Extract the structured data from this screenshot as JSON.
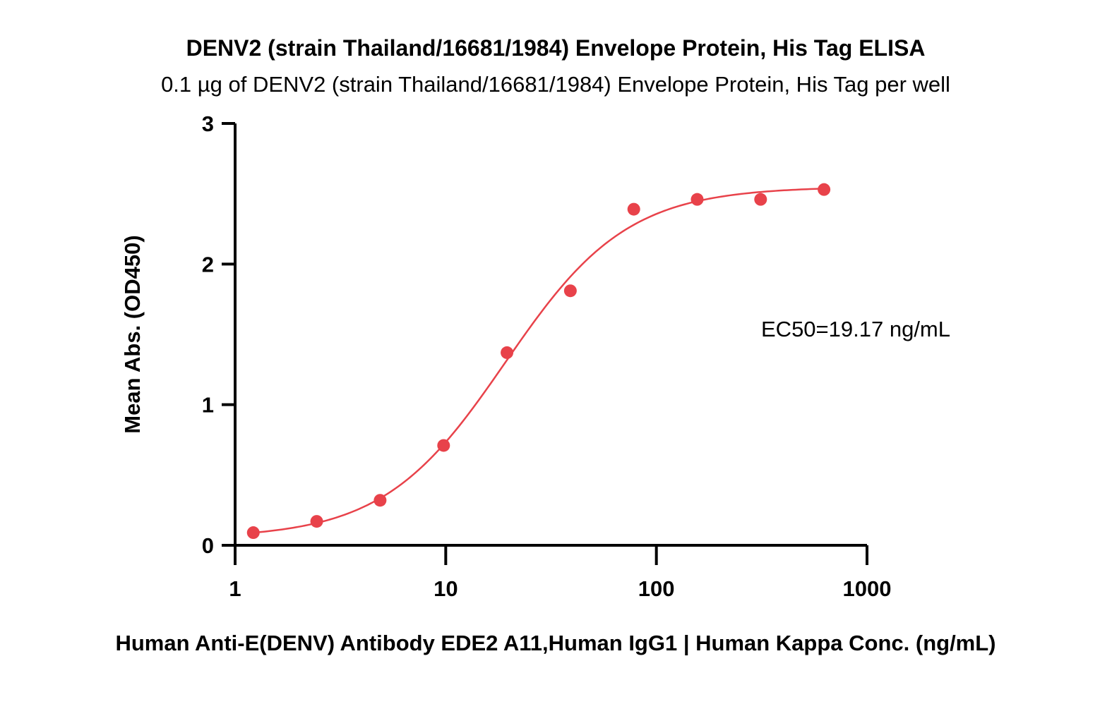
{
  "chart_data": {
    "type": "scatter",
    "title": "DENV2 (strain Thailand/16681/1984) Envelope Protein, His Tag ELISA",
    "subtitle": "0.1 µg of DENV2 (strain Thailand/16681/1984) Envelope Protein, His Tag per well",
    "xlabel": "Human Anti-E(DENV) Antibody EDE2 A11,Human IgG1 | Human Kappa Conc. (ng/mL)",
    "ylabel": "Mean Abs. (OD450)",
    "xscale": "log",
    "xlim": [
      1,
      1000
    ],
    "ylim": [
      0,
      3
    ],
    "x_ticks": [
      1,
      10,
      100,
      1000
    ],
    "x_tick_labels": [
      "1",
      "10",
      "100",
      "1000"
    ],
    "y_ticks": [
      0,
      1,
      2,
      3
    ],
    "y_tick_labels": [
      "0",
      "1",
      "2",
      "3"
    ],
    "grid": false,
    "annotation": "EC50=19.17 ng/mL",
    "colors": {
      "series": "#e8424a",
      "axis": "#000000"
    },
    "series": [
      {
        "x": [
          1.22,
          2.44,
          4.88,
          9.77,
          19.53,
          39.06,
          78.13,
          156.25,
          312.5,
          625
        ],
        "y": [
          0.09,
          0.17,
          0.32,
          0.71,
          1.37,
          1.81,
          2.39,
          2.46,
          2.46,
          2.53
        ]
      }
    ],
    "fit": {
      "model": "4PL",
      "bottom": 0.05,
      "top": 2.55,
      "ec50": 19.17,
      "hill": 1.5
    }
  }
}
